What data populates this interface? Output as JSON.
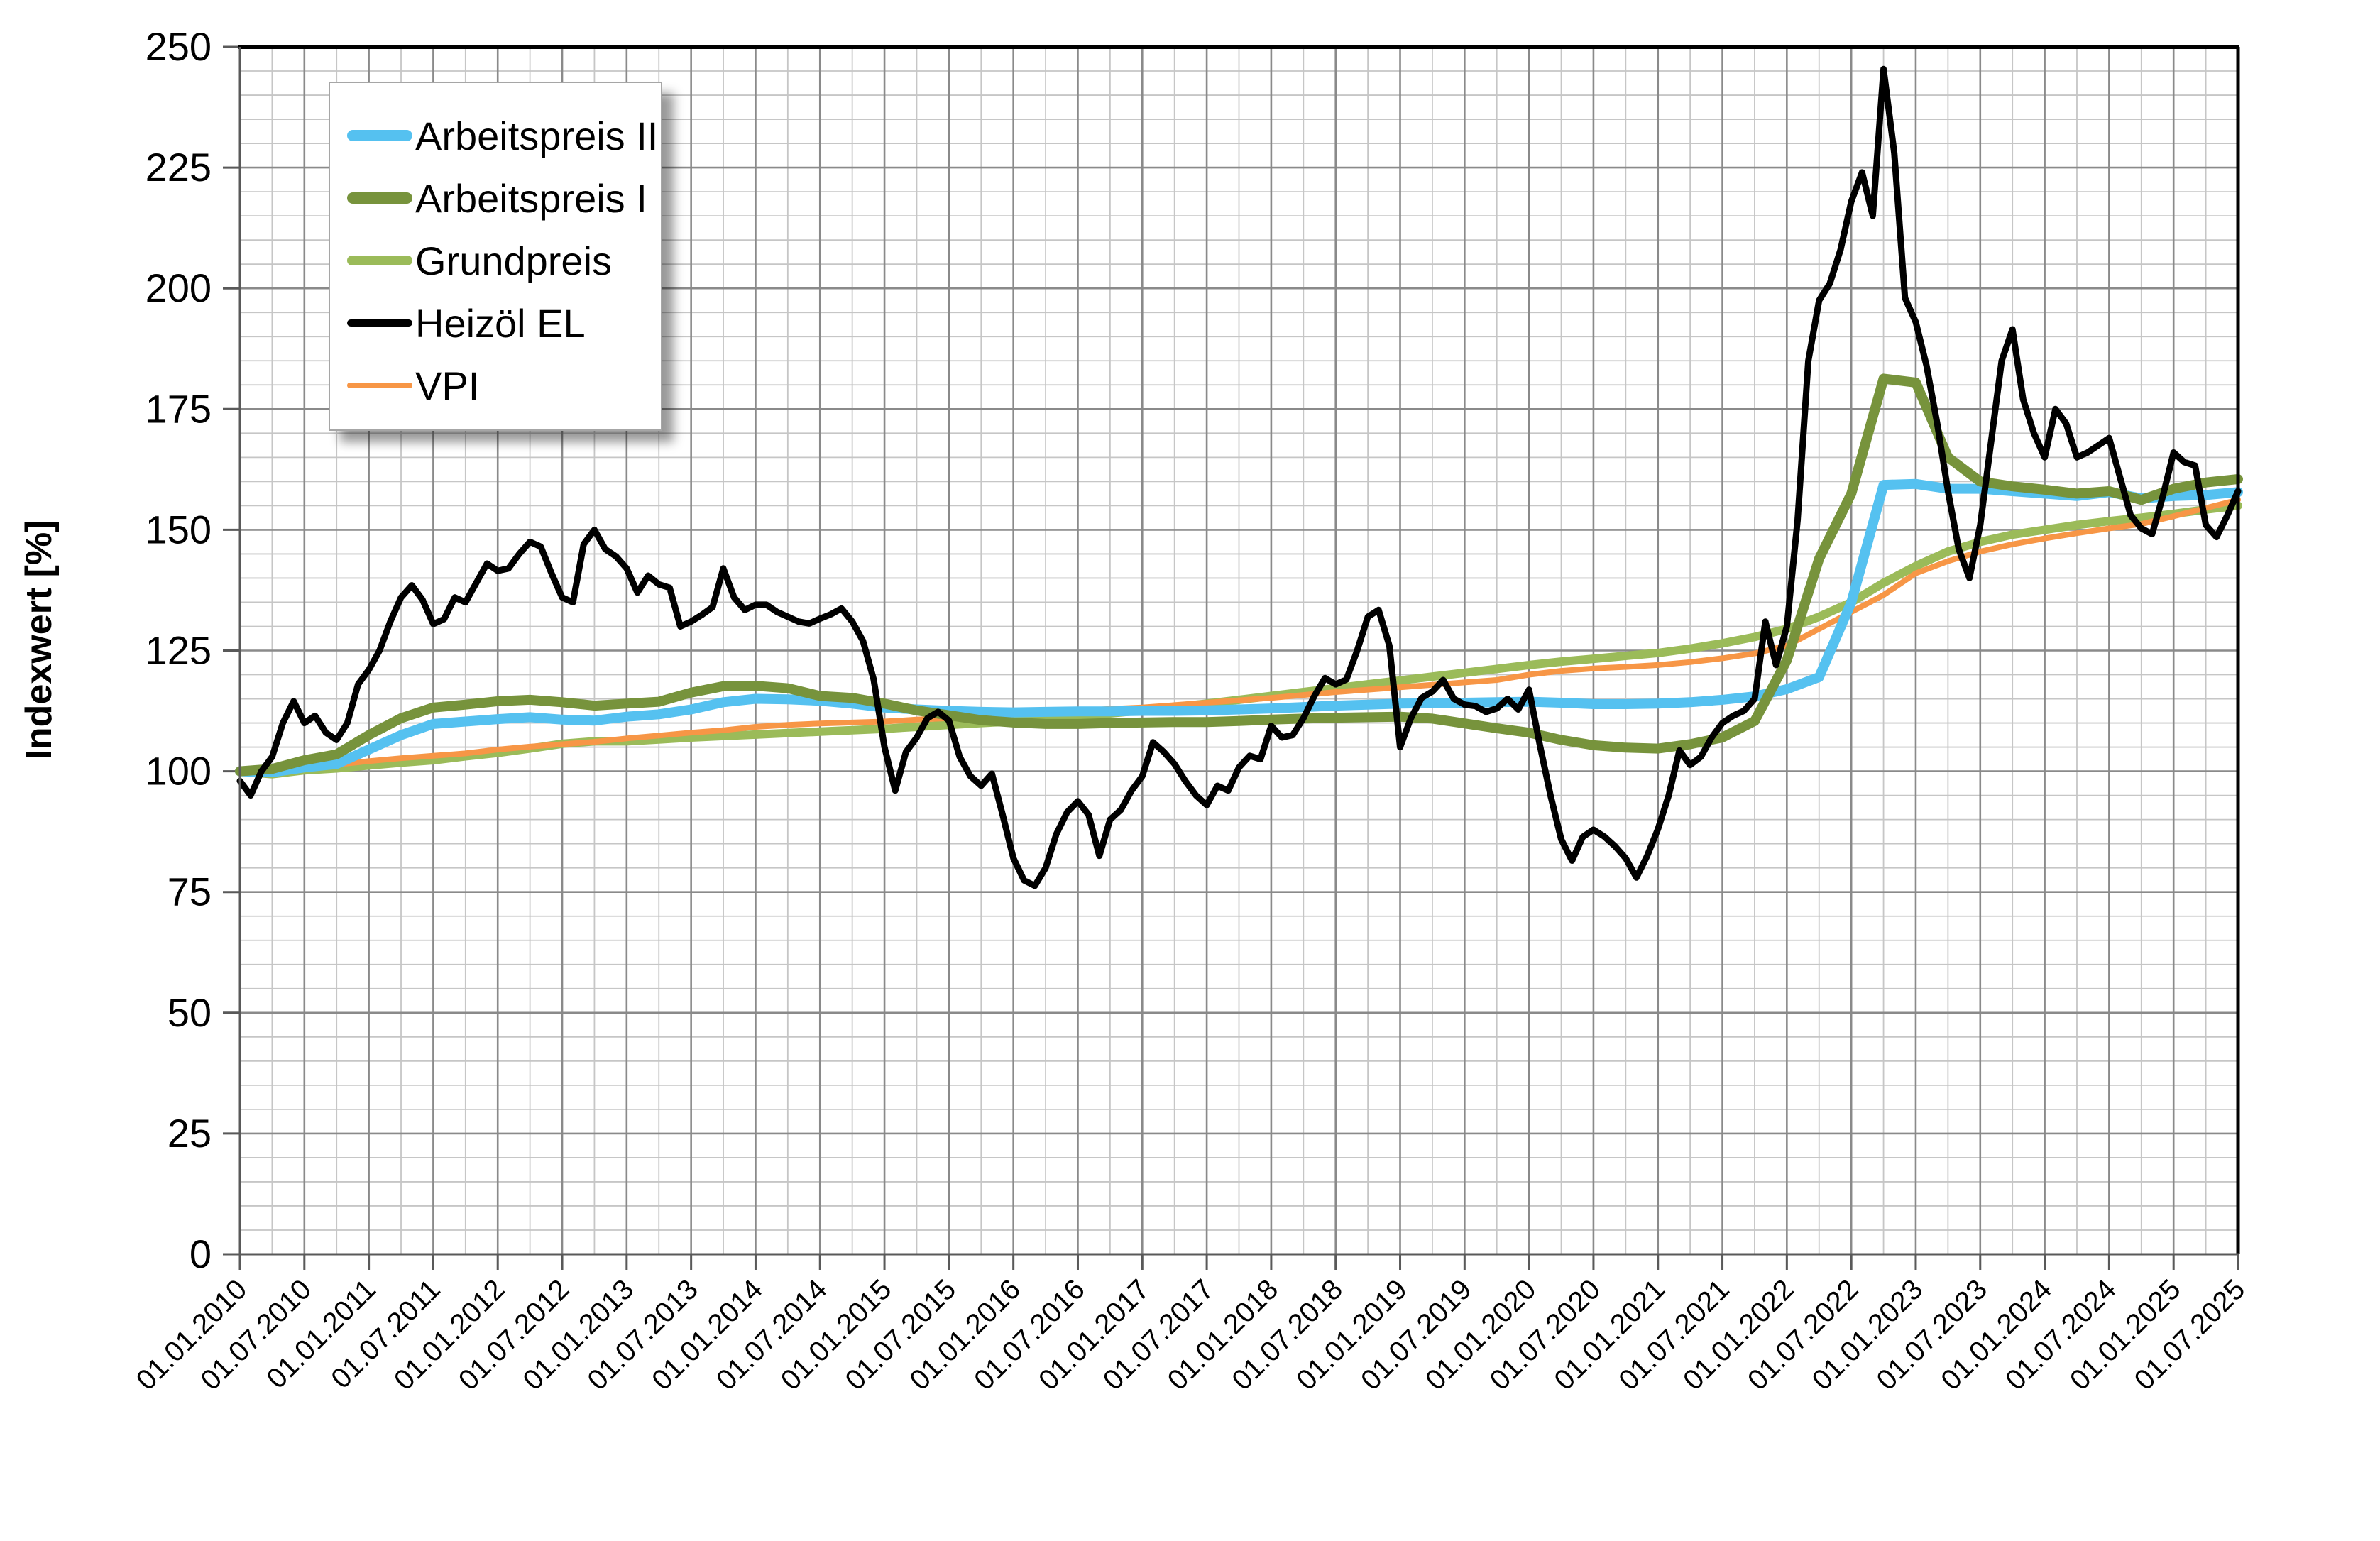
{
  "chart_data": {
    "type": "line",
    "title": "",
    "xlabel": "",
    "ylabel": "Indexwert [%]",
    "ylim": [
      0,
      250
    ],
    "y_major_step": 25,
    "y_minor_step": 5,
    "y_tick_labels": [
      "0",
      "25",
      "50",
      "75",
      "100",
      "125",
      "150",
      "175",
      "200",
      "225",
      "250"
    ],
    "x_months_total": 186,
    "x_minor_step_months": 3,
    "x_major_step_months": 6,
    "x_labels": [
      "01.01.2010",
      "01.07.2010",
      "01.01.2011",
      "01.07.2011",
      "01.01.2012",
      "01.07.2012",
      "01.01.2013",
      "01.07.2013",
      "01.01.2014",
      "01.07.2014",
      "01.01.2015",
      "01.07.2015",
      "01.01.2016",
      "01.07.2016",
      "01.01.2017",
      "01.07.2017",
      "01.01.2018",
      "01.07.2018",
      "01.01.2019",
      "01.07.2019",
      "01.01.2020",
      "01.07.2020",
      "01.01.2021",
      "01.07.2021",
      "01.01.2022",
      "01.07.2022",
      "01.01.2023",
      "01.07.2023",
      "01.01.2024",
      "01.07.2024",
      "01.01.2025",
      "01.07.2025"
    ],
    "grid": true,
    "legend_position": "top-left",
    "series": [
      {
        "name": "Grundpreis",
        "color": "#9BBB59",
        "stroke_width": 12,
        "month_step": 3,
        "values": [
          100,
          99.4,
          100.2,
          100.6,
          101.2,
          101.8,
          102.3,
          103.1,
          103.8,
          104.7,
          105.7,
          106.2,
          106.2,
          106.6,
          107,
          107.3,
          107.6,
          107.9,
          108.2,
          108.5,
          108.8,
          109.2,
          109.6,
          110,
          110.3,
          110.8,
          111.4,
          112,
          112.6,
          113.3,
          114,
          114.8,
          115.6,
          116.4,
          117.2,
          118,
          118.8,
          119.6,
          120.4,
          121.2,
          122,
          122.7,
          123.3,
          123.9,
          124.5,
          125.4,
          126.5,
          127.8,
          129.5,
          132,
          135,
          139,
          142.5,
          145.5,
          147.5,
          149,
          150,
          151,
          151.8,
          152.5,
          153.3,
          154.2,
          155
        ]
      },
      {
        "name": "VPI",
        "color": "#F79646",
        "stroke_width": 8,
        "month_step": 3,
        "values": [
          100,
          100.5,
          101,
          101.4,
          102.1,
          102.7,
          103.2,
          103.7,
          104.5,
          105.1,
          105.6,
          106.1,
          106.8,
          107.4,
          108,
          108.5,
          109.2,
          109.6,
          109.9,
          110.1,
          110.3,
          110.7,
          111,
          111.3,
          111.8,
          112.2,
          112.5,
          112.9,
          113.2,
          113.7,
          114.2,
          114.7,
          115.2,
          115.8,
          116.4,
          116.9,
          117.4,
          117.9,
          118.4,
          118.9,
          120,
          120.8,
          121.3,
          121.6,
          122,
          122.6,
          123.4,
          124.4,
          126,
          129.5,
          133,
          136.5,
          141,
          143.5,
          145.5,
          147,
          148.2,
          149.3,
          150.3,
          151.2,
          152.8,
          154.5,
          156.2
        ]
      },
      {
        "name": "Arbeitspreis II",
        "color": "#55C1F0",
        "stroke_width": 14,
        "month_step": 3,
        "values": [
          100,
          99.8,
          100.8,
          101.5,
          104.5,
          107.5,
          109.8,
          110.3,
          110.8,
          111.2,
          110.7,
          110.5,
          111.3,
          111.8,
          112.8,
          114.3,
          115,
          114.9,
          114.6,
          114,
          113.2,
          112.8,
          112.5,
          112.3,
          112.2,
          112.3,
          112.4,
          112.4,
          112.5,
          112.5,
          112.6,
          112.8,
          113,
          113.3,
          113.6,
          113.8,
          114,
          114.1,
          114.2,
          114.3,
          114.4,
          114.2,
          113.9,
          113.9,
          114,
          114.3,
          114.8,
          115.5,
          117,
          119.5,
          135,
          159.3,
          159.5,
          158.5,
          158.5,
          158,
          157.5,
          157,
          157.8,
          156.5,
          157,
          157.2,
          157.8
        ]
      },
      {
        "name": "Arbeitspreis I",
        "color": "#77933C",
        "stroke_width": 14,
        "month_step": 3,
        "values": [
          100,
          100.5,
          102.3,
          103.5,
          107.5,
          111,
          113.2,
          113.8,
          114.5,
          114.8,
          114.3,
          113.6,
          114,
          114.4,
          116.3,
          117.6,
          117.7,
          117.2,
          115.6,
          115.2,
          114,
          112.6,
          111.6,
          110.6,
          110.1,
          109.8,
          109.8,
          110,
          110.1,
          110.2,
          110.2,
          110.4,
          110.7,
          110.9,
          111.1,
          111.2,
          111.3,
          110.9,
          109.9,
          108.9,
          108,
          106.5,
          105.4,
          104.9,
          104.7,
          105.6,
          107,
          110.4,
          123,
          144,
          157.5,
          181.3,
          180.5,
          165,
          160,
          159,
          158.3,
          157.5,
          158,
          156.2,
          158.5,
          159.8,
          160.5
        ]
      },
      {
        "name": "Heizöl EL",
        "color": "#000000",
        "stroke_width": 9,
        "month_step": 1,
        "values": [
          98,
          95,
          100,
          103,
          110,
          114.5,
          110,
          111.5,
          108,
          106.5,
          110,
          118,
          121,
          125,
          131,
          136,
          138.5,
          135.5,
          130.5,
          131.5,
          136,
          135,
          139,
          143,
          141.5,
          142,
          145,
          147.5,
          146.5,
          141,
          136,
          135,
          147,
          150,
          146,
          144.5,
          142,
          137,
          140.5,
          138.7,
          138,
          130,
          131,
          132.4,
          134,
          142,
          136,
          133.4,
          134.5,
          134.5,
          133,
          132,
          131,
          130.6,
          131.6,
          132.5,
          133.7,
          131,
          127,
          119,
          105,
          96,
          104,
          107,
          111,
          112.3,
          110.5,
          103,
          99,
          97,
          99.5,
          91,
          82,
          77.4,
          76.3,
          80,
          87,
          91.5,
          93.8,
          91,
          82.5,
          90,
          92,
          96,
          99,
          106,
          104,
          101.5,
          98,
          95,
          93,
          97,
          96,
          100.8,
          103.2,
          102.5,
          109.4,
          107,
          107.5,
          111,
          115.5,
          119.3,
          118,
          119,
          125,
          132,
          133.4,
          126,
          105,
          111,
          115.2,
          116.5,
          118.9,
          115,
          113.8,
          113.5,
          112.3,
          113,
          115,
          112.8,
          116.9,
          105.5,
          95,
          85.9,
          81.5,
          86.4,
          87.9,
          86.5,
          84.5,
          82,
          78,
          82.5,
          88,
          95,
          104.3,
          101.3,
          103,
          107,
          110,
          111.5,
          112.5,
          115,
          131,
          122,
          130,
          152,
          185,
          197.5,
          201,
          208,
          218,
          224,
          215,
          245.4,
          228,
          198,
          193,
          184,
          172,
          158,
          146,
          140,
          151,
          168,
          185,
          191.5,
          177,
          170,
          165,
          175,
          172,
          165,
          166,
          167.5,
          169,
          161,
          153,
          150.3,
          149.1,
          157,
          166,
          164,
          163.3,
          151,
          148.5,
          153,
          158
        ]
      }
    ]
  },
  "legend": {
    "items": [
      {
        "label": "Arbeitspreis II",
        "color": "#55C1F0",
        "swatch_height": 16
      },
      {
        "label": "Arbeitspreis I",
        "color": "#77933C",
        "swatch_height": 16
      },
      {
        "label": "Grundpreis",
        "color": "#9BBB59",
        "swatch_height": 14
      },
      {
        "label": "Heizöl EL",
        "color": "#000000",
        "swatch_height": 10
      },
      {
        "label": "VPI",
        "color": "#F79646",
        "swatch_height": 8
      }
    ]
  }
}
